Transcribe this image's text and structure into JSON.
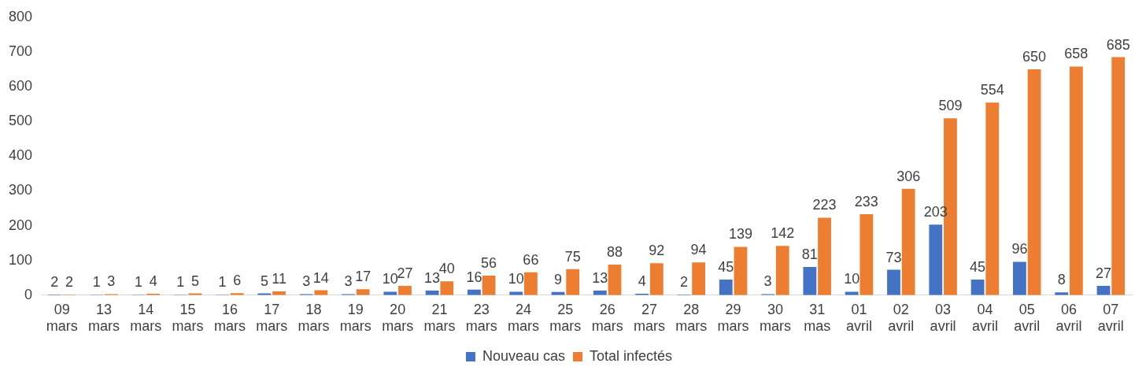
{
  "chart_data": {
    "type": "bar",
    "categories": [
      "09 mars",
      "13 mars",
      "14 mars",
      "15 mars",
      "16 mars",
      "17 mars",
      "18 mars",
      "19 mars",
      "20 mars",
      "21 mars",
      "23 mars",
      "24 mars",
      "25 mars",
      "26 mars",
      "27 mars",
      "28 mars",
      "29 mars",
      "30 mars",
      "31 mas",
      "01 avril",
      "02 avril",
      "03 avril",
      "04 avril",
      "05 avril",
      "06 avril",
      "07 avril"
    ],
    "series": [
      {
        "name": "Nouveau cas",
        "color": "#4472c4",
        "values": [
          2,
          1,
          1,
          1,
          1,
          5,
          3,
          3,
          10,
          13,
          16,
          10,
          9,
          13,
          4,
          2,
          45,
          3,
          81,
          10,
          73,
          203,
          45,
          96,
          8,
          27
        ]
      },
      {
        "name": "Total infectés",
        "color": "#ed7d31",
        "values": [
          2,
          3,
          4,
          5,
          6,
          11,
          14,
          17,
          27,
          40,
          56,
          66,
          75,
          88,
          92,
          94,
          139,
          142,
          223,
          233,
          306,
          509,
          554,
          650,
          658,
          685
        ]
      }
    ],
    "ylim": [
      0,
      800
    ],
    "yticks": [
      0,
      100,
      200,
      300,
      400,
      500,
      600,
      700,
      800
    ],
    "legend": "bottom",
    "data_labels": true
  }
}
